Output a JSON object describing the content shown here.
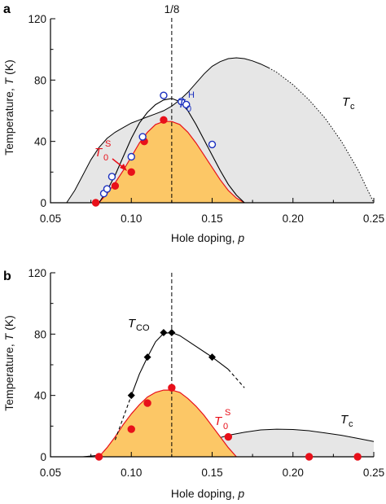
{
  "chart_data": [
    {
      "panel": "a",
      "type": "line",
      "xlabel": "Hole doping, ",
      "xlabel_var": "p",
      "ylabel": "Temperature, ",
      "ylabel_var": "T",
      "ylabel_unit": " (K)",
      "xlim": [
        0.05,
        0.25
      ],
      "ylim": [
        0,
        120
      ],
      "xticks": [
        "0.05",
        "0.10",
        "0.15",
        "0.20",
        "0.25"
      ],
      "yticks": [
        "0",
        "40",
        "80",
        "120"
      ],
      "vline": {
        "x": 0.125,
        "label": "1/8"
      },
      "colors": {
        "gray_fill": "#e6e6e6",
        "orange_fill": "#fcc766",
        "red": "#e8101a",
        "blue": "#1a2fbf",
        "black": "#000000"
      },
      "tc_region": {
        "label": "T",
        "label_sub": "c",
        "x": [
          0.06,
          0.065,
          0.07,
          0.075,
          0.08,
          0.085,
          0.09,
          0.095,
          0.1,
          0.105,
          0.11,
          0.115,
          0.12,
          0.125,
          0.13,
          0.135,
          0.14,
          0.145,
          0.15,
          0.155,
          0.16,
          0.165,
          0.17,
          0.175,
          0.18,
          0.185,
          0.19,
          0.2,
          0.21,
          0.22,
          0.23,
          0.24,
          0.25
        ],
        "y": [
          0,
          8,
          18,
          28,
          36,
          42,
          46,
          49,
          52,
          54,
          56,
          58,
          60,
          63,
          67,
          72,
          78,
          84,
          89,
          92,
          94,
          94.5,
          94,
          92.5,
          90.5,
          88,
          85,
          77,
          67,
          55,
          40,
          22,
          0
        ],
        "solid_until_x": 0.185
      },
      "cdw_envelope_x": [
        0.08,
        0.085,
        0.09,
        0.095,
        0.1,
        0.105,
        0.11,
        0.115,
        0.12,
        0.125,
        0.13,
        0.135,
        0.14,
        0.145,
        0.15,
        0.155,
        0.16,
        0.165,
        0.17
      ],
      "cdw_envelope_y": [
        0,
        8,
        18,
        30,
        42,
        52,
        59,
        64,
        67,
        68,
        66,
        60,
        51,
        41,
        31,
        21,
        12,
        5,
        0
      ],
      "T0S_curve_x": [
        0.08,
        0.085,
        0.09,
        0.095,
        0.1,
        0.105,
        0.11,
        0.115,
        0.12,
        0.125,
        0.13,
        0.135,
        0.14,
        0.145,
        0.15,
        0.155,
        0.16,
        0.165,
        0.17
      ],
      "T0S_curve_y": [
        0,
        6,
        13,
        21,
        30,
        39,
        46,
        51,
        53,
        53,
        51,
        46,
        39,
        31,
        23,
        15,
        8,
        3,
        0
      ],
      "series": [
        {
          "name": "T",
          "name_sup": "S",
          "name_sub": "0",
          "marker": "filled-circle",
          "color": "#e8101a",
          "x": [
            0.078,
            0.09,
            0.1,
            0.108,
            0.12
          ],
          "y": [
            0,
            11,
            20,
            40,
            54
          ]
        },
        {
          "name": "T",
          "name_sup": "H",
          "name_sub": "0",
          "marker": "open-circle",
          "color": "#1a2fbf",
          "x": [
            0.083,
            0.085,
            0.088,
            0.1,
            0.107,
            0.12,
            0.131,
            0.134,
            0.15
          ],
          "y": [
            6,
            9,
            17,
            30,
            43,
            70,
            66,
            64,
            38
          ]
        }
      ]
    },
    {
      "panel": "b",
      "type": "line",
      "xlabel": "Hole doping, ",
      "xlabel_var": "p",
      "ylabel": "Temperature, ",
      "ylabel_var": "T",
      "ylabel_unit": " (K)",
      "xlim": [
        0.05,
        0.25
      ],
      "ylim": [
        0,
        120
      ],
      "xticks": [
        "0.05",
        "0.10",
        "0.15",
        "0.20",
        "0.25"
      ],
      "yticks": [
        "0",
        "40",
        "80",
        "120"
      ],
      "vline": {
        "x": 0.125
      },
      "tc_region": {
        "label": "T",
        "label_sub": "c",
        "x": [
          0.07,
          0.08,
          0.09,
          0.1,
          0.11,
          0.12,
          0.13,
          0.14,
          0.15,
          0.16,
          0.17,
          0.18,
          0.19,
          0.2,
          0.21,
          0.22,
          0.23,
          0.24,
          0.25
        ],
        "y": [
          0,
          1,
          2,
          3,
          4,
          5,
          6.5,
          8.5,
          11,
          14,
          16,
          17.5,
          18,
          17.8,
          17,
          15.5,
          14,
          12,
          10
        ]
      },
      "T0S_curve_x": [
        0.08,
        0.085,
        0.09,
        0.095,
        0.1,
        0.105,
        0.11,
        0.115,
        0.12,
        0.125,
        0.13,
        0.135,
        0.14,
        0.145,
        0.15,
        0.155,
        0.16,
        0.165
      ],
      "T0S_curve_y": [
        0,
        6,
        13,
        21,
        28,
        34,
        39,
        42,
        43.5,
        43.5,
        42,
        38,
        33,
        27,
        20,
        13,
        6,
        0
      ],
      "series": [
        {
          "name": "T",
          "name_sub": "CO",
          "marker": "diamond",
          "color": "#000000",
          "x": [
            0.1,
            0.11,
            0.12,
            0.125,
            0.15
          ],
          "y": [
            40,
            65,
            81,
            81,
            65
          ],
          "line_solid_x": [
            0.1,
            0.105,
            0.11,
            0.115,
            0.12,
            0.125,
            0.13,
            0.14,
            0.15,
            0.16
          ],
          "line_solid_y": [
            40,
            54,
            65,
            75,
            80.5,
            81,
            79,
            72,
            65,
            57
          ],
          "dash_left": [
            [
              0.09,
              11
            ],
            [
              0.1,
              40
            ]
          ],
          "dash_right": [
            [
              0.16,
              57
            ],
            [
              0.17,
              45
            ]
          ]
        },
        {
          "name": "T",
          "name_sup": "S",
          "name_sub": "0",
          "marker": "filled-circle",
          "color": "#e8101a",
          "x": [
            0.08,
            0.1,
            0.11,
            0.125,
            0.16,
            0.21,
            0.24
          ],
          "y": [
            0,
            18,
            35,
            45,
            13,
            0,
            0
          ]
        }
      ]
    }
  ],
  "labels": {
    "panel_a": "a",
    "panel_b": "b",
    "vline_a": "1/8",
    "T": "T",
    "sub_0": "0",
    "sup_S": "S",
    "sup_H": "H",
    "sub_c": "c",
    "sub_CO": "CO"
  }
}
